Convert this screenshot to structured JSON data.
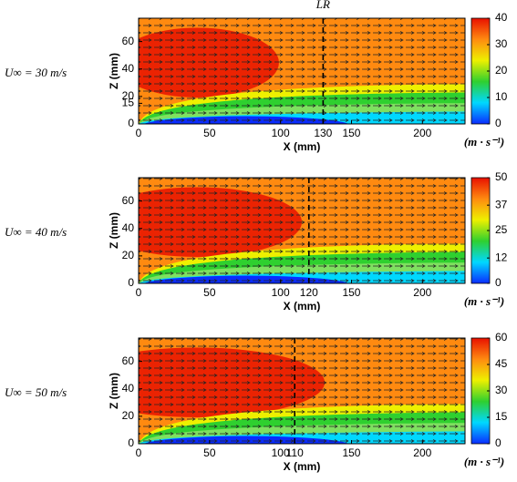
{
  "chart_data": [
    {
      "type": "contour",
      "annotation": "U∞ = 30 m/s",
      "xlabel": "X (mm)",
      "ylabel": "Z (mm)",
      "xlim": [
        0,
        230
      ],
      "xticks": [
        0,
        50,
        100,
        130,
        150,
        200
      ],
      "ylim": [
        0,
        77
      ],
      "yticks": [
        0,
        15,
        20,
        40,
        60
      ],
      "vline": 130,
      "vline_label": "LR",
      "colorbar": {
        "lim": [
          0,
          40
        ],
        "ticks": [
          0,
          10,
          20,
          30,
          40
        ],
        "label": "(m · s⁻¹)"
      },
      "colorscale": [
        "#0a2cff",
        "#00d8ff",
        "#2fd02f",
        "#eef000",
        "#ff8a10",
        "#e81000"
      ]
    },
    {
      "type": "contour",
      "annotation": "U∞ = 40 m/s",
      "xlabel": "X (mm)",
      "ylabel": "Z (mm)",
      "xlim": [
        0,
        230
      ],
      "xticks": [
        0,
        50,
        100,
        120,
        150,
        200
      ],
      "ylim": [
        0,
        77
      ],
      "yticks": [
        0,
        20,
        40,
        60
      ],
      "vline": 120,
      "colorbar": {
        "lim": [
          0,
          50
        ],
        "ticks": [
          0,
          12,
          25,
          37,
          50
        ],
        "label": "(m · s⁻¹)"
      },
      "colorscale": [
        "#0a2cff",
        "#00d8ff",
        "#2fd02f",
        "#eef000",
        "#ff8a10",
        "#e81000"
      ]
    },
    {
      "type": "contour",
      "annotation": "U∞ = 50 m/s",
      "xlabel": "X (mm)",
      "ylabel": "Z (mm)",
      "xlim": [
        0,
        230
      ],
      "xticks": [
        0,
        50,
        100,
        110,
        150,
        200
      ],
      "ylim": [
        0,
        77
      ],
      "yticks": [
        0,
        20,
        40,
        60
      ],
      "vline": 110,
      "colorbar": {
        "lim": [
          0,
          60
        ],
        "ticks": [
          0,
          15,
          30,
          45,
          60
        ],
        "label": "(m · s⁻¹)"
      },
      "colorscale": [
        "#0a2cff",
        "#00d8ff",
        "#2fd02f",
        "#eef000",
        "#ff8a10",
        "#e81000"
      ]
    }
  ]
}
